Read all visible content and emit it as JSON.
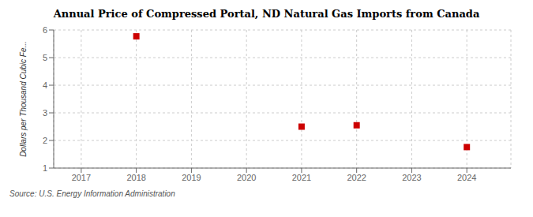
{
  "chart_data": {
    "type": "scatter",
    "title": "Annual Price of Compressed Portal, ND Natural Gas Imports from Canada",
    "ylabel": "Dollars per Thousand Cubic Fe...",
    "source": "Source: U.S. Energy Information Administration",
    "x": [
      2018,
      2021,
      2022,
      2024
    ],
    "values": [
      5.77,
      2.5,
      2.55,
      1.76
    ],
    "color": "#cc0000",
    "marker": "square",
    "xlim": [
      2016.5,
      2024.8
    ],
    "ylim": [
      1,
      6
    ],
    "xticks": [
      2017,
      2018,
      2019,
      2020,
      2021,
      2022,
      2023,
      2024
    ],
    "yticks": [
      1,
      2,
      3,
      4,
      5,
      6
    ],
    "grid": true
  }
}
